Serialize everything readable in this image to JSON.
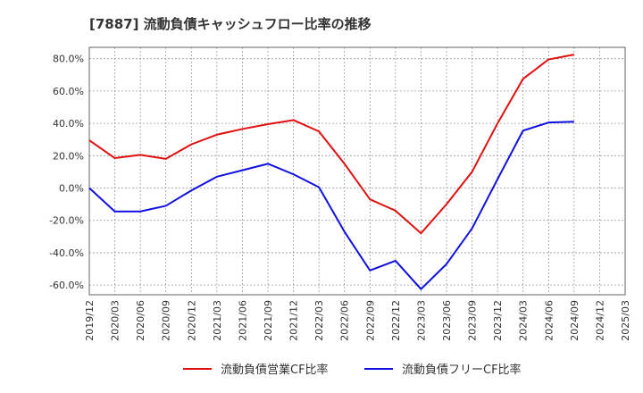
{
  "chart_data": {
    "type": "line",
    "title": "[7887]  流動負債キャッシュフロー比率の推移",
    "xlabel": "",
    "ylabel": "",
    "ylim": [
      -66,
      87
    ],
    "grid": true,
    "legend_position": "bottom",
    "x_ticks": [
      "2019/12",
      "2020/03",
      "2020/06",
      "2020/09",
      "2020/12",
      "2021/03",
      "2021/06",
      "2021/09",
      "2021/12",
      "2022/03",
      "2022/06",
      "2022/09",
      "2022/12",
      "2023/03",
      "2023/06",
      "2023/09",
      "2023/12",
      "2024/03",
      "2024/06",
      "2024/09",
      "2024/12",
      "2025/03"
    ],
    "y_ticks": [
      80,
      60,
      40,
      20,
      0,
      -20,
      -40,
      -60
    ],
    "y_tick_labels": [
      "80.0%",
      "60.0%",
      "40.0%",
      "20.0%",
      "0.0%",
      "-20.0%",
      "-40.0%",
      "-60.0%"
    ],
    "x": [
      "2019/12",
      "2020/03",
      "2020/06",
      "2020/09",
      "2020/12",
      "2021/03",
      "2021/06",
      "2021/09",
      "2021/12",
      "2022/03",
      "2022/06",
      "2022/09",
      "2022/12",
      "2023/03",
      "2023/06",
      "2023/09",
      "2023/12",
      "2024/03",
      "2024/06",
      "2024/09"
    ],
    "series": [
      {
        "name": "流動負債営業CF比率",
        "color": "#e01010",
        "values": [
          29.5,
          18.5,
          20.5,
          18.0,
          27.0,
          33.0,
          36.5,
          39.5,
          42.0,
          35.0,
          15.0,
          -7.0,
          -14.0,
          -28.0,
          -10.0,
          10.0,
          40.0,
          67.5,
          79.5,
          82.5
        ]
      },
      {
        "name": "流動負債フリーCF比率",
        "color": "#1010e0",
        "values": [
          0.0,
          -14.5,
          -14.5,
          -11.0,
          -1.5,
          7.0,
          11.0,
          15.0,
          8.5,
          0.5,
          -27.0,
          -51.0,
          -45.0,
          -62.5,
          -47.0,
          -25.0,
          5.5,
          35.5,
          40.5,
          41.0
        ]
      }
    ]
  }
}
